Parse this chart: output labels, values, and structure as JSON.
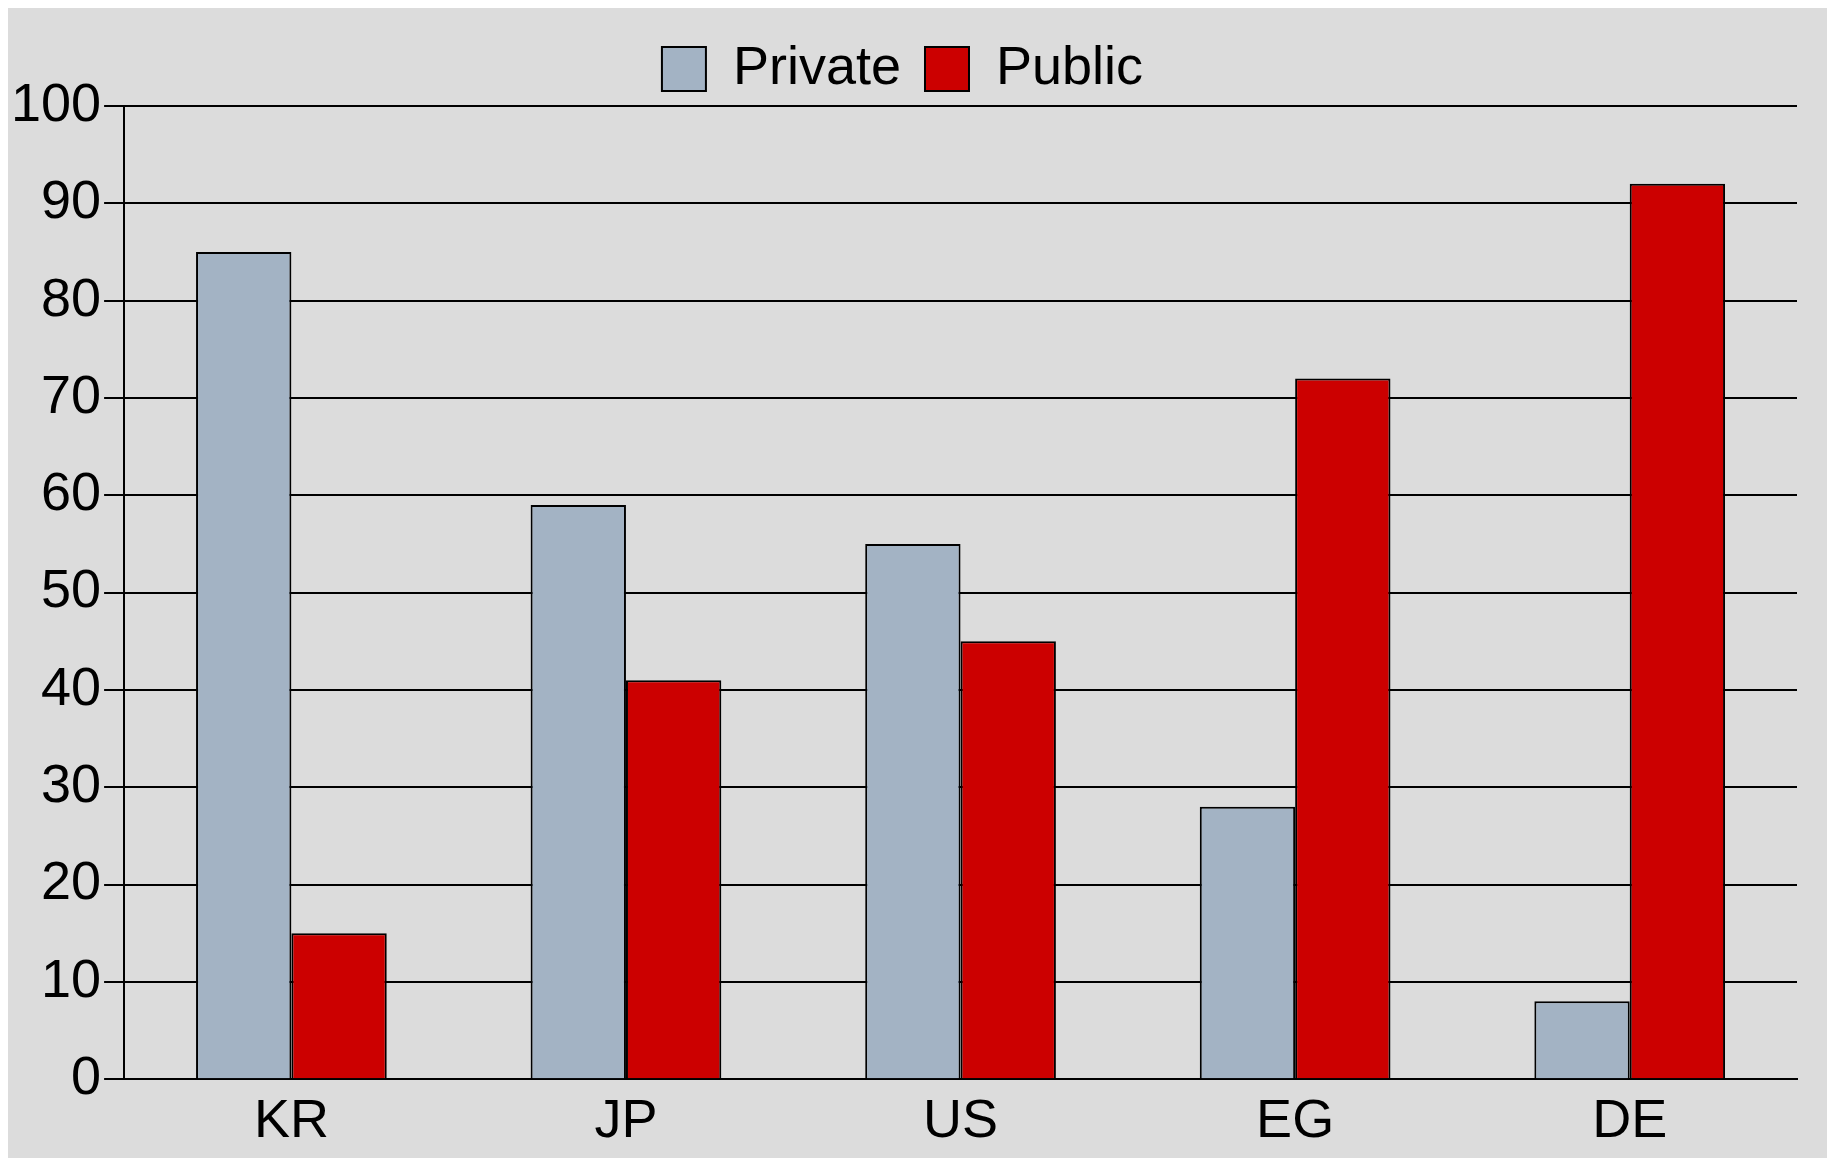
{
  "chart_data": {
    "type": "bar",
    "categories": [
      "KR",
      "JP",
      "US",
      "EG",
      "DE"
    ],
    "series": [
      {
        "name": "Private",
        "color": "#a3b3c4",
        "values": [
          85,
          59,
          55,
          28,
          8
        ]
      },
      {
        "name": "Public",
        "color": "#cc0000",
        "values": [
          15,
          41,
          45,
          72,
          92
        ]
      }
    ],
    "ylim": [
      0,
      100
    ],
    "yticks": [
      0,
      10,
      20,
      30,
      40,
      50,
      60,
      70,
      80,
      90,
      100
    ],
    "grid": "y",
    "legend": "top"
  }
}
